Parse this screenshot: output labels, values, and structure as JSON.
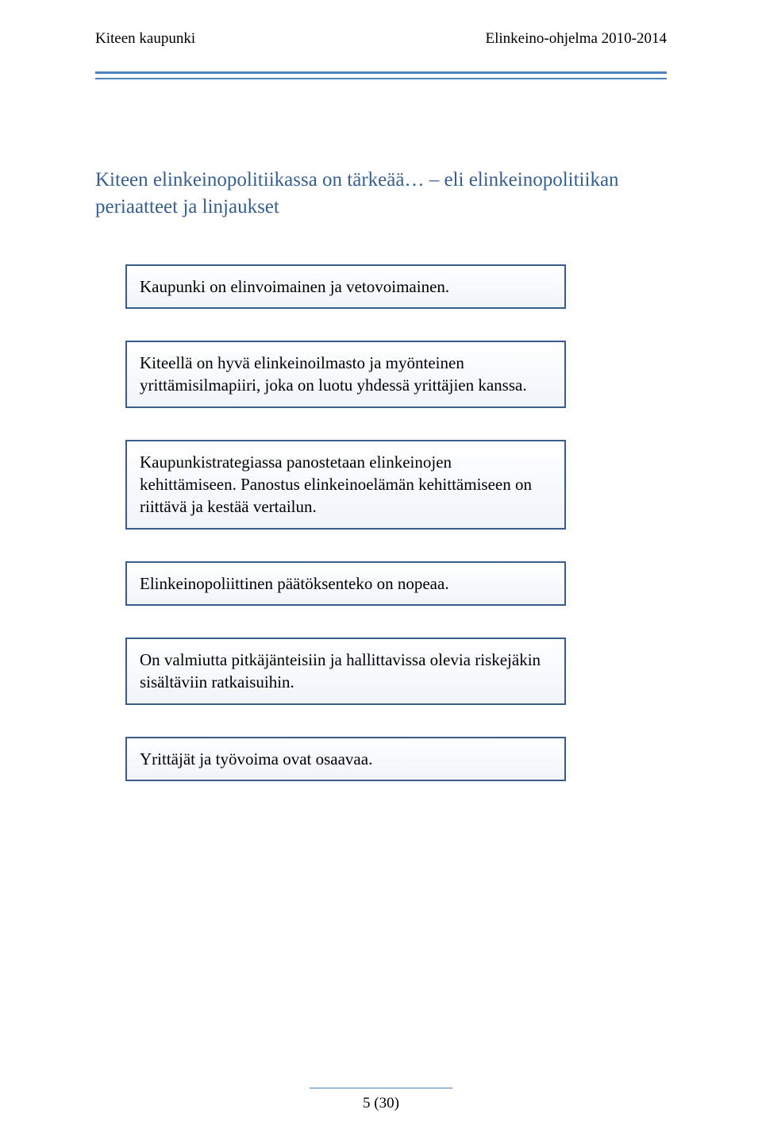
{
  "header": {
    "left": "Kiteen kaupunki",
    "right": "Elinkeino-ohjelma 2010-2014"
  },
  "colors": {
    "accent": "#4f81bd",
    "heading": "#365f91",
    "box_border": "#385d8a",
    "box_bg_top": "#ffffff",
    "box_bg_bottom": "#f0f4fa",
    "text": "#000000",
    "page_bg": "#ffffff"
  },
  "section_title": "Kiteen elinkeinopolitiikassa on tärkeää… – eli elinkeinopolitiikan periaatteet ja linjaukset",
  "boxes": [
    "Kaupunki on elinvoimainen ja vetovoimainen.",
    "Kiteellä on hyvä elinkeinoilmasto ja myönteinen yrittämisilmapiiri, joka on luotu yhdessä yrittäjien kanssa.",
    "Kaupunkistrategiassa panostetaan elinkeinojen kehittämiseen. Panostus elinkeinoelämän kehittämiseen on riittävä ja kestää vertailun.",
    "Elinkeinopoliittinen päätöksenteko on nopeaa.",
    "On valmiutta pitkäjänteisiin ja hallittavissa olevia riskejäkin sisältäviin ratkaisuihin.",
    "Yrittäjät ja työvoima ovat osaavaa."
  ],
  "footer": {
    "page": "5 (30)"
  }
}
